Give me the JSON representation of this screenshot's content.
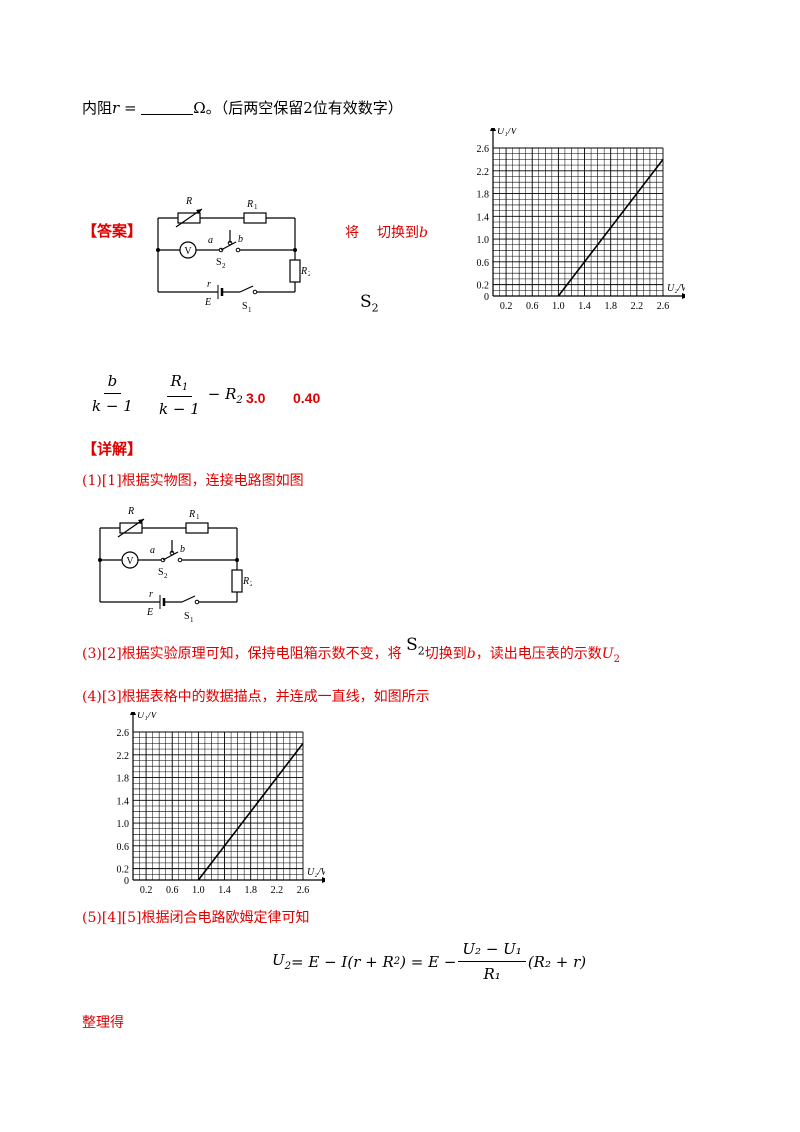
{
  "top_line": {
    "prefix": "内阻",
    "var": "r",
    "eq": " = ",
    "unit": "Ω",
    "suffix": "。（后两空保留2位有效数字）"
  },
  "answer": {
    "label": "【答案】",
    "step_text_a": "将",
    "step_text_b": "切换到",
    "step_b_letter": "b",
    "switch_symbol": "S",
    "switch_sub": "2",
    "expr1_num": "b",
    "expr1_den": "k − 1",
    "expr2_num": "R",
    "expr2_num_sub": "1",
    "expr2_den": "k − 1",
    "expr2_tail": "− R",
    "expr2_tail_sub": "2",
    "value1": "3.0",
    "value2": "0.40"
  },
  "detail": {
    "label": "【详解】",
    "line1": "(1)[1]根据实物图，连接电路图如图",
    "line3_a": "(3)[2]根据实验原理可知，保持电阻箱示数不变，将",
    "line3_b": "切换到",
    "line3_b_letter": "b",
    "line3_c": "，读出电压表的示数",
    "line3_u": "U",
    "line3_u_sub": "2",
    "line4": "(4)[3]根据表格中的数据描点，并连成一直线，如图所示",
    "line5": "(5)[4][5]根据闭合电路欧姆定律可知",
    "eq_lhs": "U",
    "eq_lhs_sub": "2",
    "eq_mid": " = E − I(r + R",
    "eq_mid_sub": "2",
    "eq_mid_end": ") = E − ",
    "eq_frac_num": "U₂ − U₁",
    "eq_frac_den": "R₁",
    "eq_tail": "(R₂ + r)",
    "line_final": "整理得"
  },
  "circuit": {
    "label_R": "R",
    "label_R1": "R",
    "label_R1_sub": "1",
    "label_V": "V",
    "label_a": "a",
    "label_b": "b",
    "label_S2": "S",
    "label_S2_sub": "2",
    "label_R2": "R",
    "label_R2_sub": "2",
    "label_r": "r",
    "label_E": "E",
    "label_S1": "S",
    "label_S1_sub": "1"
  },
  "chart_data": [
    {
      "type": "line",
      "ylabel": "U₁/V",
      "xlabel": "U₂/V",
      "xlim": [
        0,
        2.6
      ],
      "ylim": [
        0,
        2.6
      ],
      "x_ticks": [
        "0.2",
        "0.6",
        "1.0",
        "1.4",
        "1.8",
        "2.2",
        "2.6"
      ],
      "y_ticks": [
        "2.6",
        "2.2",
        "1.8",
        "1.4",
        "1.0",
        "0.6",
        "0.2"
      ],
      "origin_label": "0",
      "grid": true,
      "series": [
        {
          "x": [
            1.0,
            2.6
          ],
          "y": [
            0,
            2.4
          ]
        }
      ]
    },
    {
      "type": "line",
      "ylabel": "U₁/V",
      "xlabel": "U₂/V",
      "xlim": [
        0,
        2.6
      ],
      "ylim": [
        0,
        2.6
      ],
      "x_ticks": [
        "0.2",
        "0.6",
        "1.0",
        "1.4",
        "1.8",
        "2.2",
        "2.6"
      ],
      "y_ticks": [
        "2.6",
        "2.2",
        "1.8",
        "1.4",
        "1.0",
        "0.6",
        "0.2"
      ],
      "origin_label": "0",
      "grid": true,
      "series": [
        {
          "x": [
            1.0,
            2.6
          ],
          "y": [
            0,
            2.4
          ]
        }
      ]
    }
  ]
}
